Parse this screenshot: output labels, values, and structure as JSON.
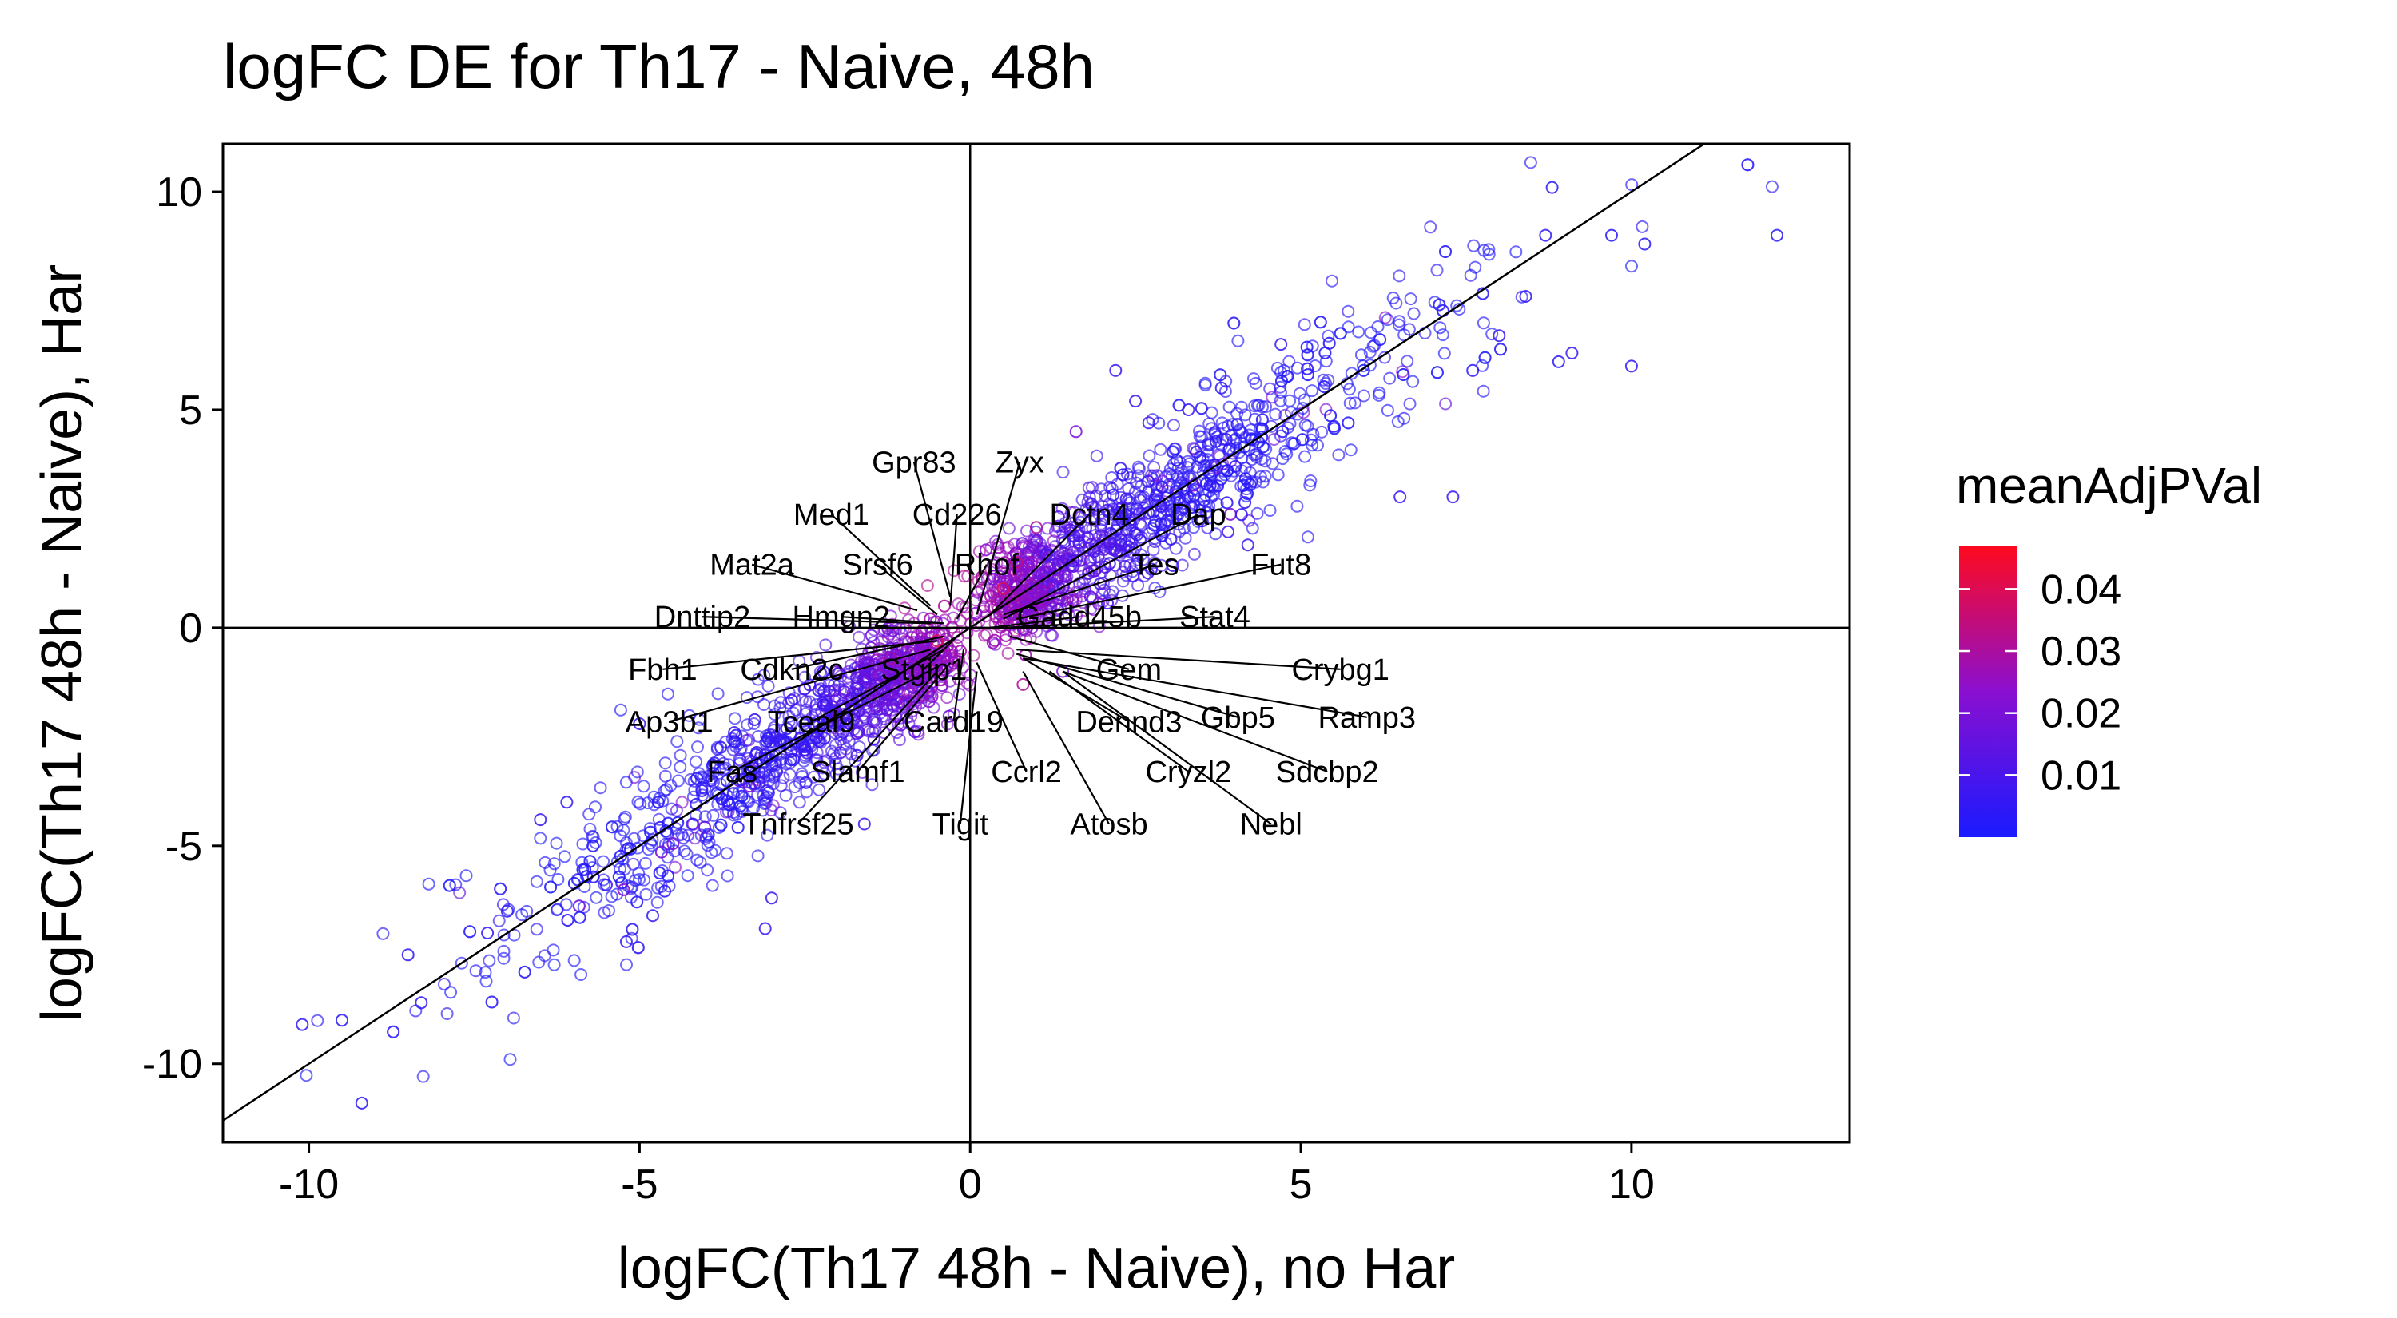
{
  "chart_data": {
    "type": "scatter",
    "title": "logFC DE for Th17 - Naive, 48h",
    "xlabel": "logFC(Th17 48h - Naive), no Har",
    "ylabel": "logFC(Th17 48h - Naive), Har",
    "xlim": [
      -11.3,
      13.3
    ],
    "ylim": [
      -11.8,
      11.1
    ],
    "x_ticks": [
      -10,
      -5,
      0,
      5,
      10
    ],
    "y_ticks": [
      -10,
      -5,
      0,
      5,
      10
    ],
    "x_tick_labels": [
      "-10",
      "-5",
      "0",
      "5",
      "10"
    ],
    "y_tick_labels": [
      "-10",
      "-5",
      "0",
      "5",
      "10"
    ],
    "grid": false,
    "reference_lines": {
      "hline": 0,
      "vline": 0,
      "diagonal": {
        "slope": 1,
        "intercept": 0
      }
    },
    "legend": {
      "title": "meanAdjPVal",
      "placement": "right",
      "type": "colorbar",
      "range": [
        0.0,
        0.047
      ],
      "ticks": [
        0.04,
        0.03,
        0.02,
        0.01
      ],
      "tick_labels": [
        "0.04",
        "0.03",
        "0.02",
        "0.01"
      ],
      "color_low": "#1a1aff",
      "color_mid": "#8a0fd0",
      "color_high": "#ff0a1e"
    },
    "points": [
      [
        12.2,
        9.0,
        0.003
      ],
      [
        10.2,
        8.8,
        0.004
      ],
      [
        10.0,
        6.0,
        0.004
      ],
      [
        9.7,
        9.0,
        0.003
      ],
      [
        9.1,
        6.3,
        0.005
      ],
      [
        8.8,
        10.1,
        0.003
      ],
      [
        8.9,
        6.1,
        0.004
      ],
      [
        8.7,
        9.0,
        0.004
      ],
      [
        8.0,
        6.7,
        0.005
      ],
      [
        7.3,
        3.0,
        0.006
      ],
      [
        7.6,
        5.9,
        0.004
      ],
      [
        8.4,
        7.6,
        0.005
      ],
      [
        6.5,
        3.0,
        0.006
      ],
      [
        4.7,
        6.5,
        0.005
      ],
      [
        3.8,
        5.5,
        0.005
      ],
      [
        2.5,
        5.2,
        0.006
      ],
      [
        2.2,
        5.9,
        0.007
      ],
      [
        2.7,
        4.7,
        0.008
      ],
      [
        1.6,
        4.5,
        0.02
      ],
      [
        4.2,
        1.9,
        0.007
      ],
      [
        3.9,
        2.2,
        0.009
      ],
      [
        3.3,
        5.0,
        0.006
      ],
      [
        0.7,
        1.5,
        0.035
      ],
      [
        1.0,
        2.3,
        0.03
      ],
      [
        0.5,
        0.9,
        0.04
      ],
      [
        -5.0,
        -2.2,
        0.006
      ],
      [
        -6.5,
        -4.4,
        0.005
      ],
      [
        -7.0,
        -6.5,
        0.005
      ],
      [
        -7.3,
        -7.0,
        0.005
      ],
      [
        -8.5,
        -7.5,
        0.004
      ],
      [
        -9.2,
        -10.9,
        0.004
      ],
      [
        -10.1,
        -9.1,
        0.004
      ],
      [
        -9.5,
        -9.0,
        0.004
      ],
      [
        -8.3,
        -8.6,
        0.004
      ],
      [
        -5.2,
        -7.2,
        0.005
      ],
      [
        -4.8,
        -6.6,
        0.005
      ],
      [
        -3.1,
        -6.9,
        0.006
      ],
      [
        -3.0,
        -6.2,
        0.006
      ],
      [
        -1.6,
        -4.5,
        0.008
      ],
      [
        -2.5,
        -1.4,
        0.009
      ],
      [
        -1.2,
        -0.7,
        0.03
      ],
      [
        -0.5,
        -0.3,
        0.04
      ],
      [
        -1.5,
        -1.5,
        0.025
      ],
      [
        -2.0,
        -2.0,
        0.02
      ],
      [
        -3.5,
        -3.5,
        0.012
      ],
      [
        -4.2,
        -4.5,
        0.008
      ],
      [
        0.8,
        -1.3,
        0.03
      ],
      [
        1.4,
        -1.0,
        0.02
      ],
      [
        -6.1,
        -4.0,
        0.005
      ],
      [
        -5.5,
        -5.9,
        0.006
      ]
    ],
    "gene_labels": [
      {
        "gene": "Gpr83",
        "x": -0.3,
        "y": 0.7,
        "lx": -0.85,
        "ly": 3.8
      },
      {
        "gene": "Zyx",
        "x": 0.1,
        "y": 0.3,
        "lx": 0.75,
        "ly": 3.8
      },
      {
        "gene": "Med1",
        "x": -0.6,
        "y": 0.5,
        "lx": -2.1,
        "ly": 2.6
      },
      {
        "gene": "Cd226",
        "x": -0.3,
        "y": 0.5,
        "lx": -0.2,
        "ly": 2.6
      },
      {
        "gene": "Dctn4",
        "x": 0.3,
        "y": 0.3,
        "lx": 1.8,
        "ly": 2.6
      },
      {
        "gene": "Dap",
        "x": 0.5,
        "y": 0.2,
        "lx": 3.45,
        "ly": 2.6
      },
      {
        "gene": "Mat2a",
        "x": -0.8,
        "y": 0.4,
        "lx": -3.3,
        "ly": 1.45
      },
      {
        "gene": "Srsf6",
        "x": -0.5,
        "y": 0.3,
        "lx": -1.4,
        "ly": 1.45
      },
      {
        "gene": "Rhof",
        "x": -0.2,
        "y": 0.2,
        "lx": 0.25,
        "ly": 1.45
      },
      {
        "gene": "Tes",
        "x": 0.5,
        "y": 0.3,
        "lx": 2.8,
        "ly": 1.45
      },
      {
        "gene": "Fut8",
        "x": 0.7,
        "y": 0.2,
        "lx": 4.7,
        "ly": 1.45
      },
      {
        "gene": "Dnttip2",
        "x": -0.6,
        "y": 0.1,
        "lx": -4.05,
        "ly": 0.25
      },
      {
        "gene": "Hmgn2",
        "x": -0.4,
        "y": 0.1,
        "lx": -1.95,
        "ly": 0.25
      },
      {
        "gene": "Gadd45b",
        "x": 0.3,
        "y": 0.0,
        "lx": 1.65,
        "ly": 0.25
      },
      {
        "gene": "Stat4",
        "x": 0.5,
        "y": 0.0,
        "lx": 3.7,
        "ly": 0.25
      },
      {
        "gene": "Fbh1",
        "x": -0.5,
        "y": -0.3,
        "lx": -4.65,
        "ly": -0.95
      },
      {
        "gene": "Cdkn2c",
        "x": -0.4,
        "y": -0.2,
        "lx": -2.7,
        "ly": -0.95
      },
      {
        "gene": "Stgip1",
        "x": -0.2,
        "y": -0.2,
        "lx": -0.7,
        "ly": -0.95
      },
      {
        "gene": "Gem",
        "x": 0.6,
        "y": -0.2,
        "lx": 2.4,
        "ly": -0.95
      },
      {
        "gene": "Crybg1",
        "x": 0.7,
        "y": -0.5,
        "lx": 5.6,
        "ly": -0.95
      },
      {
        "gene": "Gbp5",
        "x": 0.7,
        "y": -0.6,
        "lx": 4.05,
        "ly": -2.05
      },
      {
        "gene": "Ramp3",
        "x": 0.8,
        "y": -0.7,
        "lx": 6.0,
        "ly": -2.05
      },
      {
        "gene": "Ap3b1",
        "x": -0.6,
        "y": -0.5,
        "lx": -4.55,
        "ly": -2.15
      },
      {
        "gene": "Tceal9",
        "x": -0.4,
        "y": -0.5,
        "lx": -2.4,
        "ly": -2.15
      },
      {
        "gene": "Card19",
        "x": -0.1,
        "y": -0.5,
        "lx": -0.25,
        "ly": -2.15
      },
      {
        "gene": "Dennd3",
        "x": 0.8,
        "y": -0.7,
        "lx": 2.4,
        "ly": -2.15
      },
      {
        "gene": "Fas",
        "x": -0.5,
        "y": -0.9,
        "lx": -3.6,
        "ly": -3.3
      },
      {
        "gene": "Slamf1",
        "x": -0.3,
        "y": -0.8,
        "lx": -1.7,
        "ly": -3.3
      },
      {
        "gene": "Ccrl2",
        "x": 0.1,
        "y": -0.8,
        "lx": 0.85,
        "ly": -3.3
      },
      {
        "gene": "Cryzl2",
        "x": 1.2,
        "y": -1.0,
        "lx": 3.3,
        "ly": -3.3
      },
      {
        "gene": "Sdcbp2",
        "x": 1.4,
        "y": -1.0,
        "lx": 5.4,
        "ly": -3.3
      },
      {
        "gene": "Tnfrsf25",
        "x": -0.5,
        "y": -1.0,
        "lx": -2.6,
        "ly": -4.5
      },
      {
        "gene": "Tigit",
        "x": 0.1,
        "y": -1.0,
        "lx": -0.15,
        "ly": -4.5
      },
      {
        "gene": "Atosb",
        "x": 0.8,
        "y": -1.0,
        "lx": 2.1,
        "ly": -4.5
      },
      {
        "gene": "Nebl",
        "x": 1.4,
        "y": -1.0,
        "lx": 4.55,
        "ly": -4.5
      }
    ]
  }
}
